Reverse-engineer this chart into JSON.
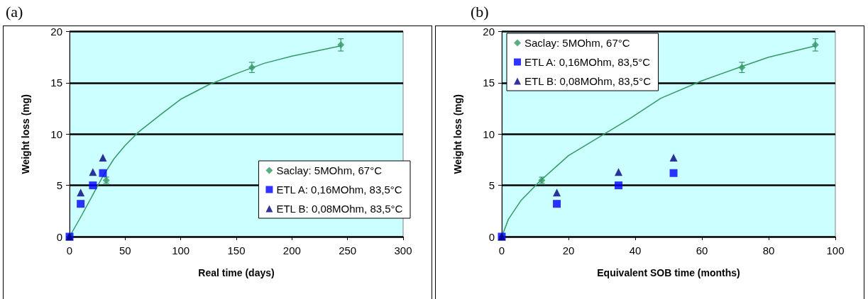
{
  "chart_data": [
    {
      "type": "scatter",
      "title": "(a)",
      "xlabel": "Real time (days)",
      "ylabel": "Weight loss (mg)",
      "xlim": [
        0,
        300
      ],
      "xticks": [
        0,
        50,
        100,
        150,
        200,
        250,
        300
      ],
      "ylim": [
        0,
        20
      ],
      "yticks": [
        0,
        5,
        10,
        15,
        20
      ],
      "grid": "y",
      "legend": "right",
      "series": [
        {
          "name": "Saclay: 5MOhm, 67°C",
          "color": "#339966",
          "marker": "diamond",
          "x": [
            0,
            33,
            164,
            244
          ],
          "values": [
            0,
            5.5,
            16.5,
            18.7
          ],
          "errors": [
            null,
            0.3,
            0.5,
            0.6
          ]
        },
        {
          "name": "ETL A: 0,16MOhm, 83,5°C",
          "color": "#0000ff",
          "marker": "square",
          "x": [
            0,
            10,
            21,
            30
          ],
          "values": [
            0,
            3.2,
            5.0,
            6.2
          ]
        },
        {
          "name": "ETL B: 0,08MOhm, 83,5°C",
          "color": "#000080",
          "marker": "triangle",
          "x": [
            0,
            10,
            21,
            30
          ],
          "values": [
            0,
            4.3,
            6.3,
            7.7
          ]
        },
        {
          "type": "line",
          "color": "#339966",
          "marker": "none",
          "x": [
            0,
            10,
            20,
            30,
            40,
            50,
            62,
            83,
            100,
            125,
            150,
            175,
            200,
            244
          ],
          "values": [
            0,
            1.9,
            3.9,
            5.9,
            7.6,
            8.9,
            10.2,
            12,
            13.4,
            14.8,
            15.9,
            16.9,
            17.6,
            18.6
          ]
        }
      ]
    },
    {
      "type": "scatter",
      "title": "(b)",
      "xlabel": "Equivalent SOB time (months)",
      "ylabel": "Weight loss (mg)",
      "xlim": [
        0,
        100
      ],
      "xticks": [
        0,
        20,
        40,
        60,
        80,
        100
      ],
      "ylim": [
        0,
        20
      ],
      "yticks": [
        0,
        5,
        10,
        15,
        20
      ],
      "grid": "y",
      "legend": "top left",
      "series": [
        {
          "name": "Saclay: 5MOhm, 67°C",
          "color": "#339966",
          "marker": "diamond",
          "x": [
            0,
            12,
            72,
            94
          ],
          "values": [
            0,
            5.5,
            16.5,
            18.7
          ],
          "errors": [
            null,
            0.3,
            0.5,
            0.6
          ]
        },
        {
          "name": "ETL A: 0,16MOhm, 83,5°C",
          "color": "#0000ff",
          "marker": "square",
          "x": [
            0,
            16.5,
            35,
            51.5
          ],
          "values": [
            0,
            3.2,
            5.0,
            6.2
          ]
        },
        {
          "name": "ETL B: 0,08MOhm, 83,5°C",
          "color": "#000080",
          "marker": "triangle",
          "x": [
            0,
            16.5,
            35,
            51.5
          ],
          "values": [
            0,
            4.3,
            6.3,
            7.7
          ]
        },
        {
          "type": "line",
          "color": "#339966",
          "marker": "none",
          "x": [
            0,
            2,
            5.7,
            11.4,
            20,
            31.7,
            38.3,
            47.7,
            60,
            72,
            80,
            94
          ],
          "values": [
            0,
            1.7,
            3.5,
            5.4,
            7.9,
            10.2,
            11.5,
            13.5,
            15.2,
            16.6,
            17.5,
            18.6
          ]
        }
      ]
    }
  ]
}
